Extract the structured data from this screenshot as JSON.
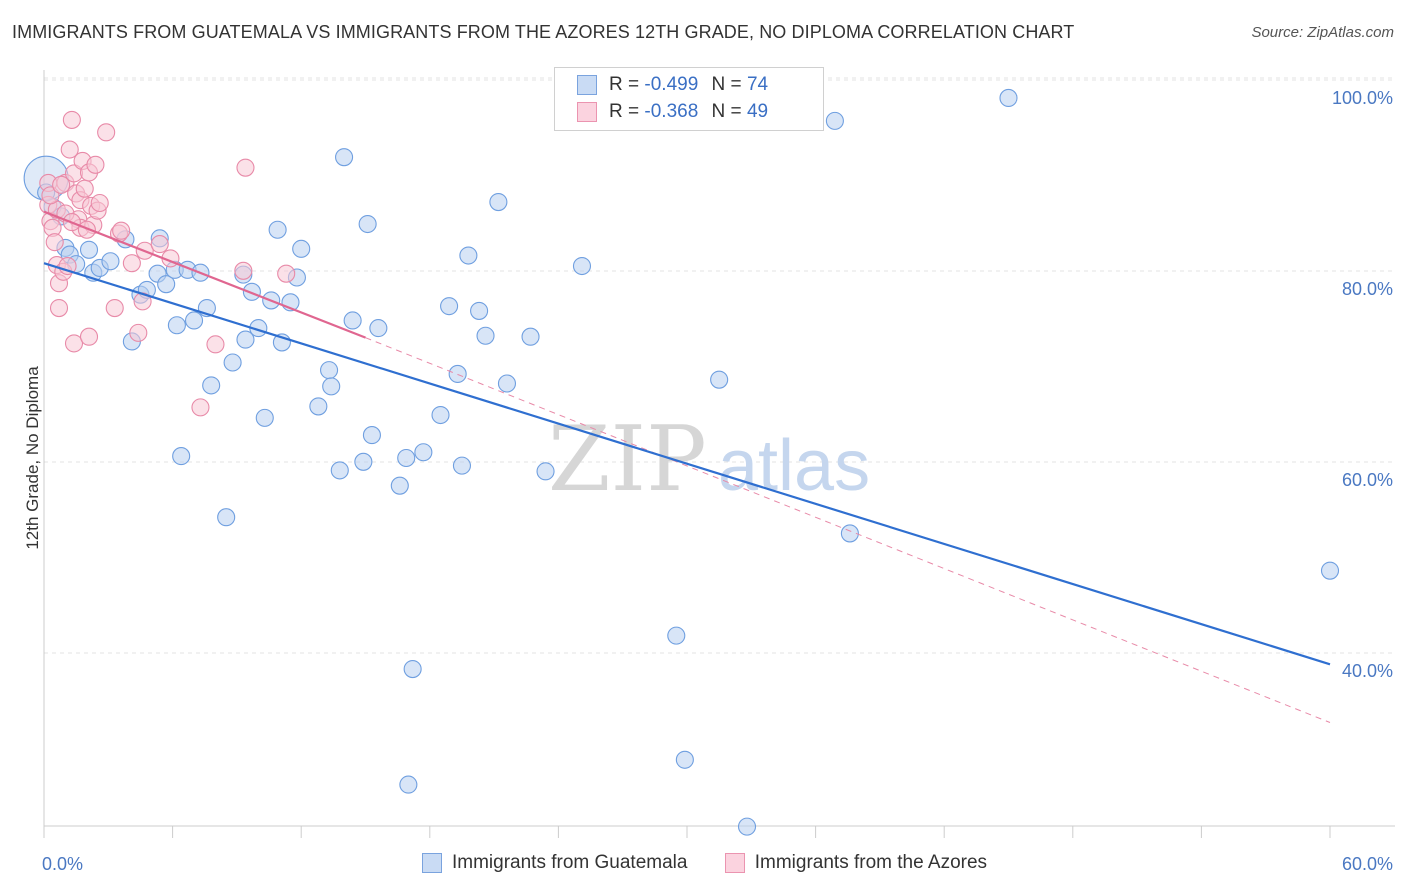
{
  "header": {
    "title": "IMMIGRANTS FROM GUATEMALA VS IMMIGRANTS FROM THE AZORES 12TH GRADE, NO DIPLOMA CORRELATION CHART",
    "source": "Source: ZipAtlas.com"
  },
  "watermark": {
    "zip": "ZIP",
    "atlas": "atlas"
  },
  "legend": {
    "rows": [
      {
        "r_label": "R =",
        "r_value": "-0.499",
        "n_label": "N =",
        "n_value": "74",
        "color": "#a9c7ee"
      },
      {
        "r_label": "R =",
        "r_value": "-0.368",
        "n_label": "N =",
        "n_value": "49",
        "color": "#f5b8cb"
      }
    ]
  },
  "bottom_legend": {
    "items": [
      {
        "label": "Immigrants from Guatemala",
        "color": "#a9c7ee"
      },
      {
        "label": "Immigrants from the Azores",
        "color": "#f5b8cb"
      }
    ]
  },
  "chart_data": {
    "type": "scatter",
    "title": "IMMIGRANTS FROM GUATEMALA VS IMMIGRANTS FROM THE AZORES 12TH GRADE, NO DIPLOMA CORRELATION CHART",
    "xlabel": "",
    "ylabel": "12th Grade, No Diploma",
    "xlim": [
      0,
      60
    ],
    "ylim": [
      22,
      102
    ],
    "x_tick_labels": [
      "0.0%",
      "60.0%"
    ],
    "y_ticks": [
      40,
      60,
      80,
      100
    ],
    "y_tick_labels": [
      "40.0%",
      "60.0%",
      "80.0%",
      "100.0%"
    ],
    "grid": true,
    "series": [
      {
        "name": "Immigrants from Guatemala",
        "color": "#6f9fe0",
        "fill": "#b8d0f0",
        "trend": {
          "x": [
            0,
            60
          ],
          "y": [
            82.6,
            40.6
          ]
        },
        "points": [
          [
            0.1,
            91.5
          ],
          [
            0.4,
            88.5
          ],
          [
            0.8,
            87.5
          ],
          [
            1.0,
            84.2
          ],
          [
            1.2,
            83.5
          ],
          [
            1.5,
            82.5
          ],
          [
            2.1,
            84.0
          ],
          [
            2.3,
            81.6
          ],
          [
            2.6,
            82.1
          ],
          [
            3.1,
            82.8
          ],
          [
            3.8,
            85.1
          ],
          [
            4.1,
            74.4
          ],
          [
            4.5,
            79.3
          ],
          [
            4.8,
            79.8
          ],
          [
            5.3,
            81.5
          ],
          [
            5.4,
            85.2
          ],
          [
            5.7,
            80.4
          ],
          [
            6.1,
            81.9
          ],
          [
            6.2,
            76.1
          ],
          [
            6.4,
            62.4
          ],
          [
            6.7,
            81.9
          ],
          [
            7.0,
            76.6
          ],
          [
            7.3,
            81.6
          ],
          [
            7.6,
            77.9
          ],
          [
            7.8,
            69.8
          ],
          [
            8.5,
            56.0
          ],
          [
            8.8,
            72.2
          ],
          [
            9.3,
            81.4
          ],
          [
            9.4,
            74.6
          ],
          [
            9.7,
            79.6
          ],
          [
            10.0,
            75.8
          ],
          [
            10.3,
            66.4
          ],
          [
            10.6,
            78.7
          ],
          [
            10.9,
            86.1
          ],
          [
            11.1,
            74.3
          ],
          [
            11.5,
            78.5
          ],
          [
            11.8,
            81.1
          ],
          [
            12.0,
            84.1
          ],
          [
            12.8,
            67.6
          ],
          [
            13.3,
            71.4
          ],
          [
            13.4,
            69.7
          ],
          [
            13.8,
            60.9
          ],
          [
            14.0,
            93.7
          ],
          [
            14.4,
            76.6
          ],
          [
            14.9,
            61.8
          ],
          [
            15.1,
            86.7
          ],
          [
            15.3,
            64.6
          ],
          [
            15.6,
            75.8
          ],
          [
            16.6,
            59.3
          ],
          [
            16.9,
            62.2
          ],
          [
            17.0,
            28.0
          ],
          [
            17.2,
            40.1
          ],
          [
            17.7,
            62.8
          ],
          [
            18.5,
            66.7
          ],
          [
            18.9,
            78.1
          ],
          [
            19.3,
            71.0
          ],
          [
            19.5,
            61.4
          ],
          [
            19.8,
            83.4
          ],
          [
            20.3,
            77.6
          ],
          [
            20.6,
            75.0
          ],
          [
            21.2,
            89.0
          ],
          [
            21.6,
            70.0
          ],
          [
            22.7,
            74.9
          ],
          [
            23.4,
            60.8
          ],
          [
            25.1,
            82.3
          ],
          [
            29.5,
            43.6
          ],
          [
            29.9,
            30.6
          ],
          [
            31.5,
            70.4
          ],
          [
            32.8,
            23.6
          ],
          [
            36.9,
            97.5
          ],
          [
            37.6,
            54.3
          ],
          [
            45.0,
            99.9
          ],
          [
            60.0,
            50.4
          ],
          [
            0.1,
            90.0
          ]
        ]
      },
      {
        "name": "Immigrants from the Azores",
        "color": "#e88aa8",
        "fill": "#f8c8d6",
        "trend": {
          "x": [
            0,
            15
          ],
          "y": [
            88.0,
            74.8
          ]
        },
        "trend_extension": {
          "x": [
            15,
            60
          ],
          "y": [
            74.8,
            34.5
          ]
        },
        "points": [
          [
            0.2,
            91.0
          ],
          [
            0.2,
            88.7
          ],
          [
            0.3,
            87.0
          ],
          [
            0.4,
            86.3
          ],
          [
            0.6,
            88.2
          ],
          [
            0.6,
            82.4
          ],
          [
            0.7,
            80.5
          ],
          [
            0.7,
            77.9
          ],
          [
            0.9,
            81.7
          ],
          [
            1.0,
            91.0
          ],
          [
            1.1,
            82.3
          ],
          [
            1.2,
            94.5
          ],
          [
            1.3,
            97.6
          ],
          [
            1.4,
            92.0
          ],
          [
            1.4,
            74.2
          ],
          [
            1.5,
            89.9
          ],
          [
            1.6,
            87.2
          ],
          [
            1.7,
            86.3
          ],
          [
            1.7,
            89.2
          ],
          [
            1.8,
            93.3
          ],
          [
            1.9,
            90.4
          ],
          [
            2.1,
            74.9
          ],
          [
            2.1,
            92.1
          ],
          [
            2.2,
            88.6
          ],
          [
            2.3,
            86.6
          ],
          [
            2.4,
            92.9
          ],
          [
            2.5,
            88.1
          ],
          [
            2.6,
            88.9
          ],
          [
            2.9,
            96.3
          ],
          [
            3.3,
            77.9
          ],
          [
            3.5,
            85.7
          ],
          [
            3.6,
            86.0
          ],
          [
            4.1,
            82.6
          ],
          [
            4.4,
            75.3
          ],
          [
            4.6,
            78.6
          ],
          [
            4.7,
            83.9
          ],
          [
            5.4,
            84.6
          ],
          [
            5.9,
            83.1
          ],
          [
            7.3,
            67.5
          ],
          [
            8.0,
            74.1
          ],
          [
            9.3,
            81.8
          ],
          [
            9.4,
            92.6
          ],
          [
            11.3,
            81.5
          ],
          [
            0.3,
            89.7
          ],
          [
            0.5,
            84.8
          ],
          [
            0.8,
            90.8
          ],
          [
            1.0,
            87.8
          ],
          [
            1.3,
            86.9
          ],
          [
            2.0,
            86.1
          ]
        ]
      }
    ]
  }
}
